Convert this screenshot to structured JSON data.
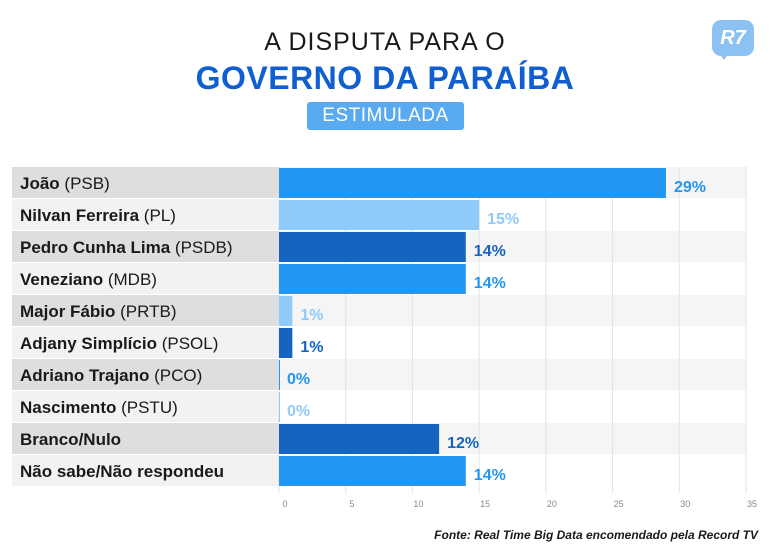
{
  "header": {
    "title_top": "A DISPUTA PARA O",
    "title_main": "GOVERNO DA PARAÍBA",
    "subtitle": "ESTIMULADA",
    "logo": "R7"
  },
  "source": "Fonte: Real Time Big Data encomendado pela Record TV",
  "chart_data": {
    "type": "bar",
    "orientation": "horizontal",
    "categories": [
      {
        "name": "João",
        "party": "(PSB)"
      },
      {
        "name": "Nilvan Ferreira",
        "party": "(PL)"
      },
      {
        "name": "Pedro Cunha Lima",
        "party": "(PSDB)"
      },
      {
        "name": "Veneziano",
        "party": "(MDB)"
      },
      {
        "name": "Major Fábio",
        "party": "(PRTB)"
      },
      {
        "name": "Adjany Simplício",
        "party": "(PSOL)"
      },
      {
        "name": "Adriano Trajano",
        "party": "(PCO)"
      },
      {
        "name": "Nascimento",
        "party": "(PSTU)"
      },
      {
        "name": "Branco/Nulo",
        "party": ""
      },
      {
        "name": "Não sabe/Não respondeu",
        "party": ""
      }
    ],
    "values": [
      29,
      15,
      14,
      14,
      1,
      1,
      0,
      0,
      12,
      14
    ],
    "value_labels": [
      "29%",
      "15%",
      "14%",
      "14%",
      "1%",
      "1%",
      "0%",
      "0%",
      "12%",
      "14%"
    ],
    "colors": [
      "#2196f3",
      "#90caf9",
      "#1565c0",
      "#2196f3",
      "#90caf9",
      "#1565c0",
      "#2196f3",
      "#90caf9",
      "#1565c0",
      "#2196f3"
    ],
    "xlim": [
      0,
      35
    ],
    "xticks": [
      0,
      5,
      10,
      15,
      20,
      25,
      30,
      35
    ],
    "grid": true
  }
}
